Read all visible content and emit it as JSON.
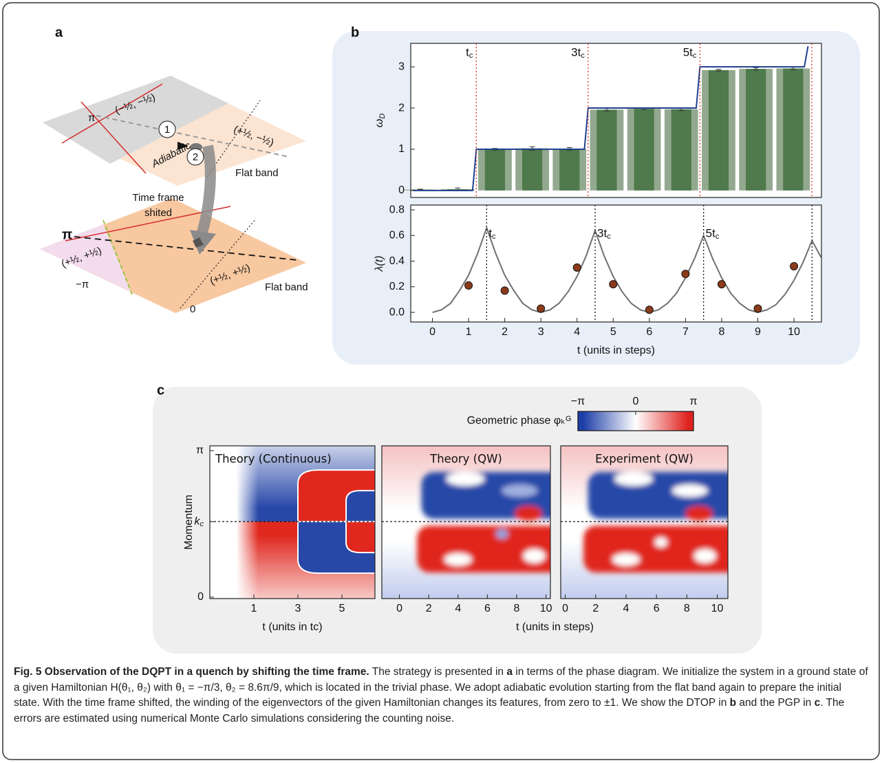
{
  "figure_labels": [
    "a",
    "b",
    "c"
  ],
  "diagram": {
    "upper_plane": {
      "pi": "π",
      "quadrant_left": "(−½, −½)",
      "quadrant_right": "(+½, −½)",
      "step_1": "1",
      "step_2": "2",
      "path": "Adiabatic",
      "band": "Flat band"
    },
    "transition": [
      "Time frame",
      "shited"
    ],
    "lower_plane": {
      "pi": "π",
      "minus_pi": "−π",
      "zero": "0",
      "quadrant_left": "(+½, +½)",
      "quadrant_right": "(+½, +½)",
      "band": "Flat band"
    }
  },
  "chart_data": [
    {
      "type": "bar",
      "ylabel": "ωD",
      "x": [
        0,
        1,
        2,
        3,
        4,
        5,
        6,
        7,
        8,
        9,
        10
      ],
      "values": [
        0.02,
        0.03,
        1.0,
        1.02,
        1.01,
        1.96,
        1.98,
        1.97,
        2.92,
        2.95,
        2.96
      ],
      "errors": [
        0.01,
        0.03,
        0.02,
        0.04,
        0.03,
        0.03,
        0.02,
        0.03,
        0.02,
        0.03,
        0.03
      ],
      "color": "#4e7a4c",
      "back_color": "#93a98f",
      "line": {
        "x": [
          -0.2,
          1.4,
          1.5,
          4.4,
          4.5,
          7.4,
          7.5,
          10.3,
          10.4
        ],
        "values": [
          0,
          0,
          1,
          1,
          2,
          2,
          3,
          3,
          3.5
        ],
        "color": "#1f3f8f"
      },
      "markers": {
        "x": [
          1.5,
          4.5,
          7.5,
          10.5
        ],
        "labels": [
          "tc",
          "3tc",
          "5tc",
          null
        ],
        "color": "#d9342b"
      },
      "xlim": [
        -0.26,
        10.76
      ],
      "ylim": [
        -0.17,
        3.57
      ],
      "yticks": [
        0,
        1,
        2,
        3
      ]
    },
    {
      "type": "scatter",
      "ylabel": "λ(t)",
      "xlabel": "t (units in steps)",
      "x": [
        1,
        2,
        3,
        4,
        5,
        6,
        7,
        8,
        9,
        10
      ],
      "values": [
        0.21,
        0.17,
        0.03,
        0.35,
        0.22,
        0.02,
        0.3,
        0.22,
        0.03,
        0.36
      ],
      "color": "#8b3a1a",
      "curve": {
        "x": [
          0,
          0.25,
          0.5,
          0.75,
          1,
          1.25,
          1.5,
          1.75,
          2,
          2.25,
          2.5,
          2.75,
          3,
          3.25,
          3.5,
          3.75,
          4,
          4.25,
          4.5,
          4.75,
          5,
          5.25,
          5.5,
          5.75,
          6,
          6.25,
          6.5,
          6.75,
          7,
          7.25,
          7.5,
          7.75,
          8,
          8.25,
          8.5,
          8.75,
          9,
          9.25,
          9.5,
          9.75,
          10,
          10.25,
          10.5,
          10.75
        ],
        "values": [
          0,
          0.02,
          0.07,
          0.17,
          0.29,
          0.46,
          0.66,
          0.46,
          0.29,
          0.17,
          0.07,
          0.02,
          0,
          0.02,
          0.07,
          0.16,
          0.28,
          0.44,
          0.64,
          0.44,
          0.28,
          0.16,
          0.07,
          0.02,
          0,
          0.02,
          0.07,
          0.15,
          0.27,
          0.42,
          0.6,
          0.42,
          0.27,
          0.15,
          0.07,
          0.02,
          0,
          0.02,
          0.06,
          0.14,
          0.25,
          0.39,
          0.56,
          0.43
        ],
        "color": "#707070"
      },
      "markers": {
        "x": [
          1.5,
          4.5,
          7.5,
          10.5
        ],
        "labels": [
          "tc",
          "3tc",
          "5tc",
          null
        ],
        "color": "#111111"
      },
      "xlim": [
        -0.6,
        10.76
      ],
      "ylim": [
        -0.075,
        0.838
      ],
      "xticks": [
        0,
        1,
        2,
        3,
        4,
        5,
        6,
        7,
        8,
        9,
        10
      ],
      "yticks": [
        {
          "value": 0,
          "label": "0.0"
        },
        {
          "value": 0.2,
          "label": "0.2"
        },
        {
          "value": 0.4,
          "label": "0.4"
        },
        {
          "value": 0.6,
          "label": "0.6"
        },
        {
          "value": 0.8,
          "label": "0.8"
        }
      ]
    },
    {
      "type": "heatmap",
      "title": "Theory (Continuous)",
      "ylabel": "Momentum",
      "xlabel": "t (units in tc)",
      "xlim": [
        -1,
        6.5
      ],
      "xticks": [
        1,
        3,
        5
      ],
      "ylim": [
        -0.03,
        3.245
      ],
      "yticks": [
        0,
        {
          "value": 1.62,
          "label": "kc"
        },
        {
          "value": 3.14159,
          "label": "π"
        }
      ]
    },
    {
      "type": "heatmap",
      "title": "Theory (QW)",
      "xlabel": "t (units in steps)",
      "xlim": [
        -1.2,
        10.3
      ],
      "xticks": [
        0,
        2,
        4,
        6,
        8,
        10
      ],
      "ylim": [
        -0.03,
        3.245
      ]
    },
    {
      "type": "heatmap",
      "title": "Experiment (QW)",
      "xlim": [
        -0.3,
        10.7
      ],
      "xticks": [
        0,
        2,
        4,
        6,
        8,
        10
      ],
      "ylim": [
        -0.03,
        3.245
      ]
    }
  ],
  "colorbar": {
    "label": "Geometric phase φₖᴳ",
    "lim": [
      -3.14159,
      3.14159
    ],
    "ticks": [
      {
        "value": -3.14159,
        "label": "−π"
      },
      0,
      {
        "value": 3.14159,
        "label": "π"
      }
    ],
    "colors": [
      "#1f3fa8",
      "#ffffff",
      "#e0231f"
    ]
  },
  "caption": {
    "title": "Fig. 5 Observation of the DQPT in a quench by shifting the time frame.",
    "body": [
      "The strategy is presented in",
      "a",
      "in terms of the phase diagram. We initialize the system in a ground state of a given Hamiltonian H(θ₁, θ₂) with θ₁ = −π/3, θ₂ = 8.6π/9, which is located in the trivial phase. We adopt adiabatic evolution starting from the flat band again to prepare the initial state. With the time frame shifted, the winding of the eigenvectors of the given Hamiltonian changes its features, from zero to ±1. We show the DTOP in",
      "b",
      "and the PGP in",
      "c",
      ". The errors are estimated using numerical Monte Carlo simulations considering the counting noise."
    ]
  }
}
